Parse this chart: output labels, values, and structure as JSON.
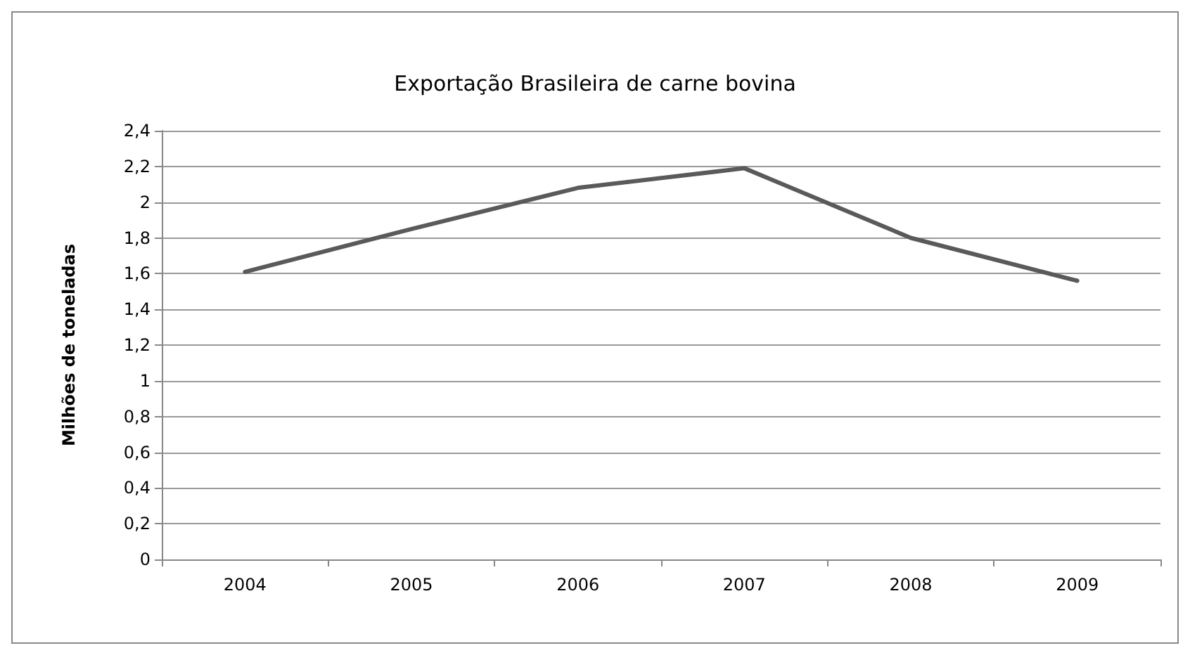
{
  "chart_data": {
    "type": "line",
    "title": "Exportação Brasileira de carne bovina",
    "ylabel": "Milhões de toneladas",
    "categories": [
      "2004",
      "2005",
      "2006",
      "2007",
      "2008",
      "2009"
    ],
    "series": [
      {
        "color": "#5a5a5a",
        "values": [
          1.61,
          1.85,
          2.08,
          2.19,
          1.8,
          1.56
        ]
      }
    ],
    "ylim": [
      0,
      2.4
    ],
    "yticks": [
      0,
      {
        "value": 0.2,
        "label": "0,2"
      },
      {
        "value": 0.4,
        "label": "0,4"
      },
      {
        "value": 0.6,
        "label": "0,6"
      },
      {
        "value": 0.8,
        "label": "0,8"
      },
      1,
      {
        "value": 1.2,
        "label": "1,2"
      },
      {
        "value": 1.4,
        "label": "1,4"
      },
      {
        "value": 1.6,
        "label": "1,6"
      },
      {
        "value": 1.8,
        "label": "1,8"
      },
      2,
      {
        "value": 2.2,
        "label": "2,2"
      },
      {
        "value": 2.4,
        "label": "2,4"
      }
    ],
    "grid": "y",
    "marker": "none",
    "line_style": "solid"
  }
}
